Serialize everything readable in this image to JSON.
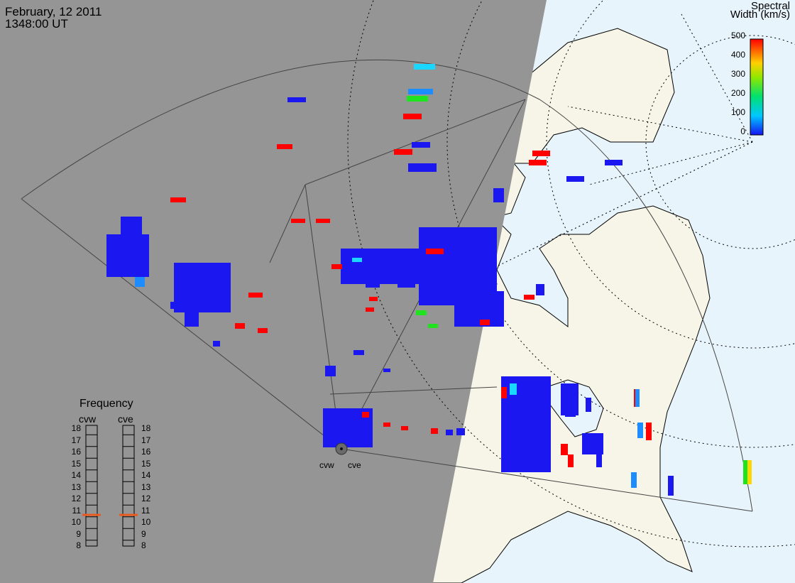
{
  "header": {
    "date": "February, 12 2011",
    "time": "1348:00 UT"
  },
  "colorbar": {
    "title_line1": "Spectral",
    "title_line2": "Width (km/s)",
    "ticks": [
      "500",
      "400",
      "300",
      "200",
      "100",
      "0"
    ]
  },
  "frequency_panel": {
    "title": "Frequency",
    "radars": [
      "cvw",
      "cve"
    ],
    "ticks": [
      "18",
      "17",
      "16",
      "15",
      "14",
      "13",
      "12",
      "11",
      "10",
      "9",
      "8"
    ],
    "cvw_value": 10.6,
    "cve_value": 10.6
  },
  "sites": [
    "cvw",
    "cve"
  ],
  "colors": {
    "night": "#959595",
    "day_ocean": "#e8f4fb",
    "day_land": "#f6f5e8",
    "low": "#1a17f0",
    "high": "#ff0000",
    "freq_marker": "#e85a1e"
  }
}
